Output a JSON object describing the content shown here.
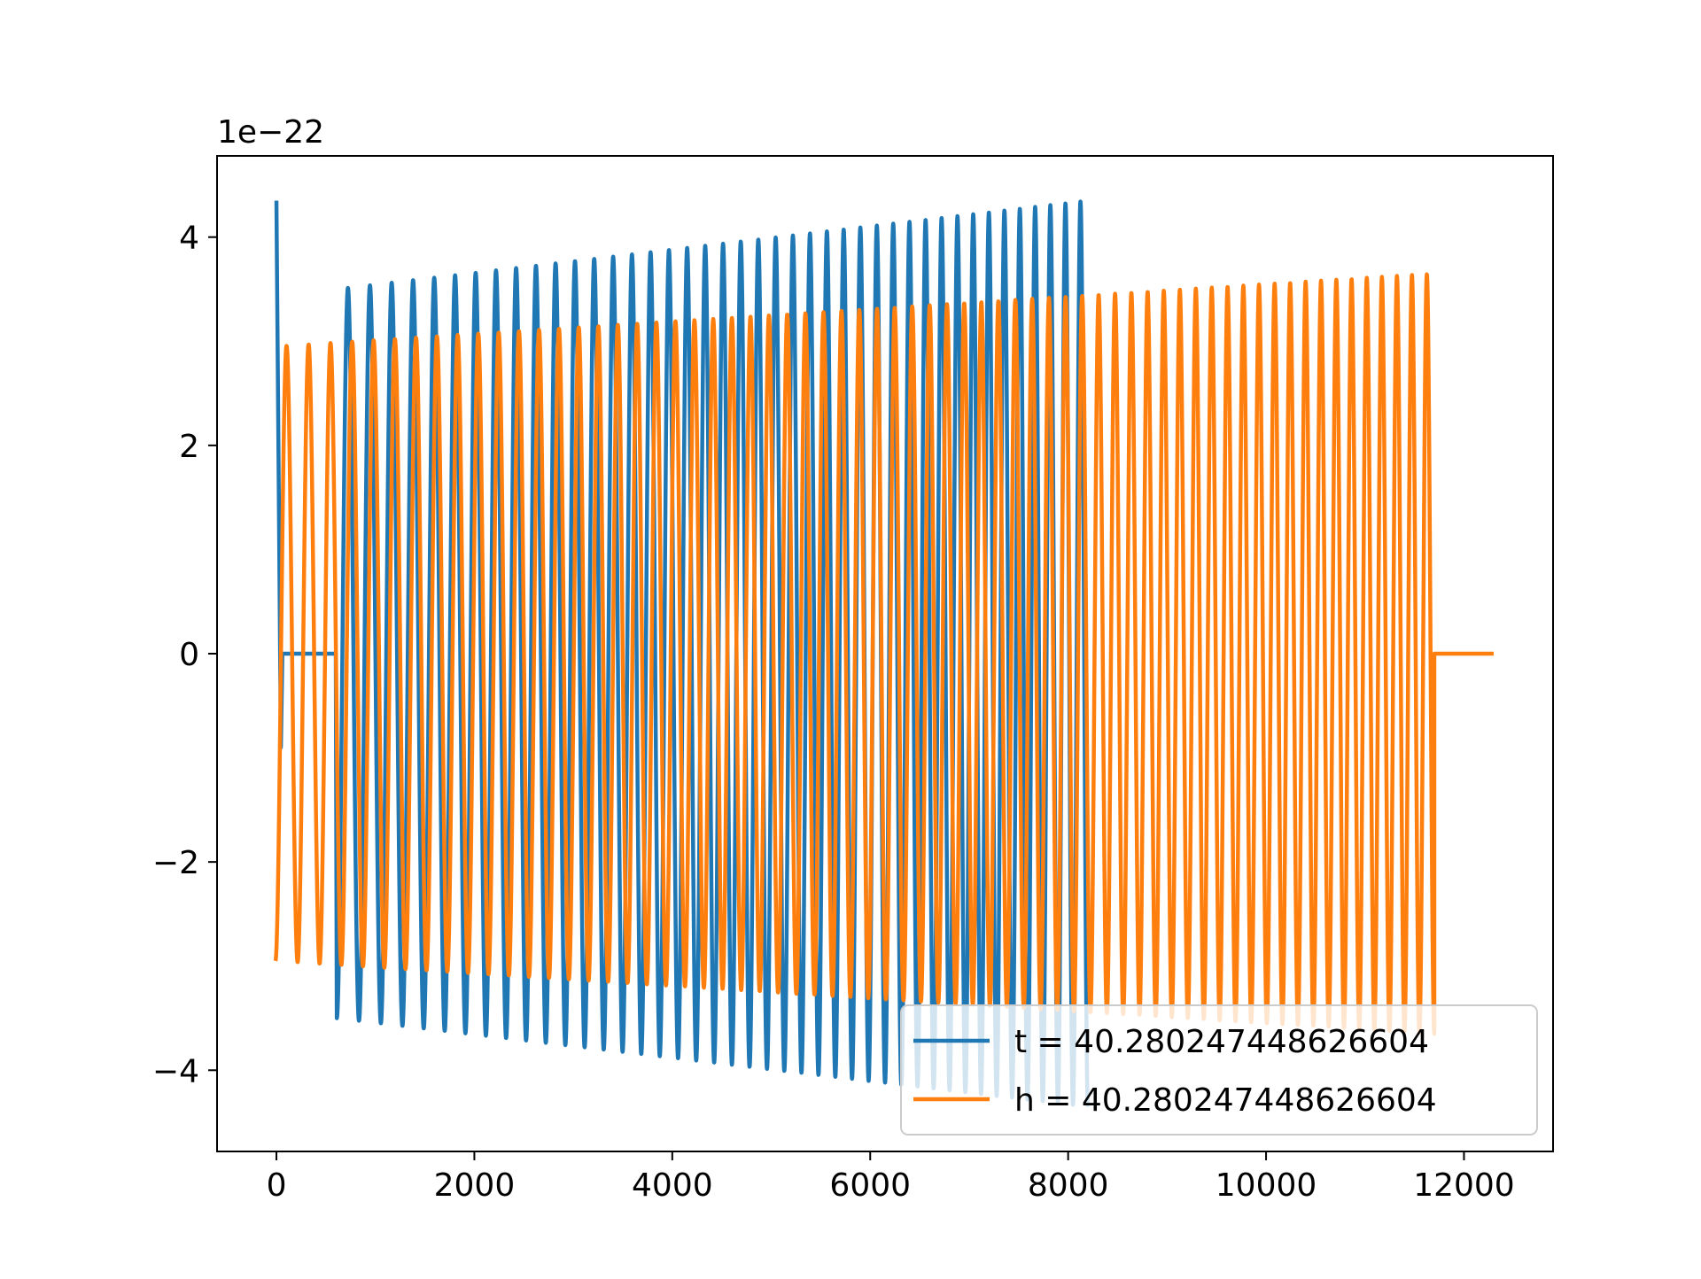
{
  "chart_data": {
    "type": "line",
    "title": "",
    "xlabel": "",
    "ylabel": "",
    "y_offset_text": "1e−22",
    "y_scale_factor": 1e-22,
    "xlim": [
      -600,
      12900
    ],
    "ylim": [
      -4.78,
      4.78
    ],
    "grid": false,
    "legend_position": "lower right",
    "x_ticks": [
      0,
      2000,
      4000,
      6000,
      8000,
      10000,
      12000
    ],
    "x_tick_labels": [
      "0",
      "2000",
      "4000",
      "6000",
      "8000",
      "10000",
      "12000"
    ],
    "y_ticks": [
      -4,
      -2,
      0,
      2,
      4
    ],
    "y_tick_labels": [
      "−4",
      "−2",
      "0",
      "2",
      "4"
    ],
    "series": [
      {
        "name": "t = 40.280247448626604",
        "color": "#1f77b4",
        "segments": [
          {
            "x_start": 0,
            "x_end": 600,
            "kind": "decay-flat",
            "start_value": 4.35,
            "dip_value": -0.9,
            "flat_value": 0.0
          },
          {
            "x_start": 610,
            "x_end": 8200,
            "kind": "chirp",
            "amplitude_start": 3.5,
            "amplitude_end": 4.35,
            "cycles": 42,
            "start_phase": "min"
          }
        ]
      },
      {
        "name": "h = 40.280247448626604",
        "color": "#ff7f0e",
        "segments": [
          {
            "x_start": -10,
            "x_end": 11700,
            "kind": "chirp",
            "amplitude_start": 2.95,
            "amplitude_end": 3.65,
            "cycles": 65,
            "start_phase": "min"
          },
          {
            "x_start": 11700,
            "x_end": 12300,
            "kind": "flat",
            "flat_value": 0.0
          }
        ]
      }
    ]
  }
}
